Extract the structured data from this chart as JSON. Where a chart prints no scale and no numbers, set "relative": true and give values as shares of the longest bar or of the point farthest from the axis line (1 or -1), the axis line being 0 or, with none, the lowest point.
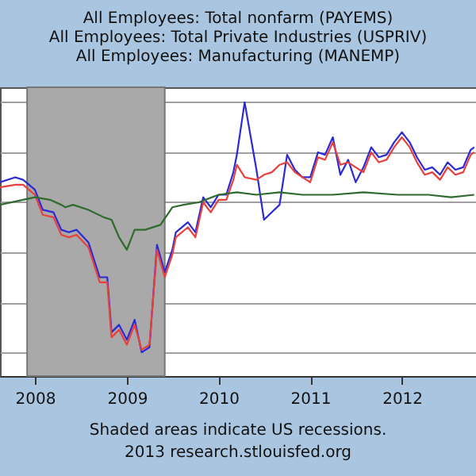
{
  "chart_data": {
    "type": "line",
    "relative": true,
    "title": [
      "All Employees: Total nonfarm (PAYEMS)",
      "All Employees: Total Private Industries (USPRIV)",
      "All Employees: Manufacturing (MANEMP)"
    ],
    "annotations": [
      "Shaded areas indicate US recessions.",
      "2013 research.stlouisfed.org"
    ],
    "x": [
      "2007-08-15",
      "2007-10-15",
      "2007-11-15",
      "2008-01-01",
      "2008-02-01",
      "2008-03-15",
      "2008-04-15",
      "2008-05-15",
      "2008-06-15",
      "2008-08-01",
      "2008-09-15",
      "2008-10-15",
      "2008-11-01",
      "2008-12-01",
      "2009-01-01",
      "2009-02-01",
      "2009-03-01",
      "2009-04-01",
      "2009-05-01",
      "2009-06-01",
      "2009-07-01",
      "2009-07-15",
      "2009-09-01",
      "2009-10-01",
      "2009-11-01",
      "2009-12-01",
      "2010-01-01",
      "2010-02-01",
      "2010-03-01",
      "2010-03-15",
      "2010-04-15",
      "2010-06-01",
      "2010-07-01",
      "2010-08-01",
      "2010-09-01",
      "2010-10-01",
      "2010-11-01",
      "2010-12-01",
      "2011-01-01",
      "2011-02-01",
      "2011-03-01",
      "2011-04-01",
      "2011-05-01",
      "2011-06-01",
      "2011-07-01",
      "2011-08-01",
      "2011-09-01",
      "2011-10-01",
      "2011-11-01",
      "2011-12-01",
      "2012-01-01",
      "2012-02-01",
      "2012-03-01",
      "2012-04-01",
      "2012-05-01",
      "2012-06-01",
      "2012-07-01",
      "2012-08-01",
      "2012-09-01",
      "2012-10-01",
      "2012-10-15"
    ],
    "xlim": [
      "2007-08-15",
      "2012-10-22"
    ],
    "xticks": [
      {
        "value": "2008",
        "label": "2008"
      },
      {
        "value": "2009",
        "label": "2009"
      },
      {
        "value": "2010",
        "label": "2010"
      },
      {
        "value": "2011",
        "label": "2011"
      },
      {
        "value": "2012",
        "label": "2012"
      }
    ],
    "series": [
      {
        "color": "#2a2ad8",
        "values": [
          0.68,
          0.7,
          0.69,
          0.65,
          0.57,
          0.56,
          0.49,
          0.48,
          0.49,
          0.44,
          0.3,
          0.3,
          0.08,
          0.11,
          0.05,
          0.13,
          0.0,
          0.02,
          0.43,
          0.32,
          0.41,
          0.48,
          0.52,
          0.48,
          0.62,
          0.58,
          0.63,
          0.63,
          0.72,
          0.79,
          1.0,
          0.73,
          0.53,
          0.56,
          0.59,
          0.79,
          0.73,
          0.7,
          0.7,
          0.8,
          0.79,
          0.86,
          0.71,
          0.77,
          0.68,
          0.74,
          0.82,
          0.78,
          0.79,
          0.84,
          0.88,
          0.84,
          0.78,
          0.73,
          0.74,
          0.71,
          0.76,
          0.73,
          0.74,
          0.81,
          0.82
        ]
      },
      {
        "color": "#e8403a",
        "values": [
          0.66,
          0.67,
          0.67,
          0.63,
          0.55,
          0.54,
          0.47,
          0.46,
          0.47,
          0.42,
          0.28,
          0.28,
          0.06,
          0.09,
          0.03,
          0.11,
          0.01,
          0.03,
          0.41,
          0.3,
          0.39,
          0.46,
          0.5,
          0.46,
          0.6,
          0.56,
          0.61,
          0.61,
          0.69,
          0.75,
          0.7,
          0.69,
          0.71,
          0.72,
          0.75,
          0.76,
          0.72,
          0.7,
          0.68,
          0.78,
          0.77,
          0.84,
          0.75,
          0.76,
          0.74,
          0.72,
          0.8,
          0.76,
          0.77,
          0.82,
          0.86,
          0.82,
          0.76,
          0.71,
          0.72,
          0.69,
          0.74,
          0.71,
          0.72,
          0.79,
          0.8
        ]
      },
      {
        "color": "#2f6a2f",
        "x": [
          "2007-08-15",
          "2008-01-01",
          "2008-03-01",
          "2008-04-15",
          "2008-05-01",
          "2008-06-01",
          "2008-08-01",
          "2008-10-01",
          "2008-11-01",
          "2008-12-01",
          "2009-01-01",
          "2009-02-01",
          "2009-03-15",
          "2009-05-15",
          "2009-07-01",
          "2009-08-15",
          "2009-10-15",
          "2010-01-01",
          "2010-03-15",
          "2010-06-01",
          "2010-09-01",
          "2010-12-01",
          "2011-04-01",
          "2011-08-01",
          "2011-12-15",
          "2012-04-15",
          "2012-07-15",
          "2012-10-15"
        ],
        "values": [
          0.59,
          0.62,
          0.61,
          0.59,
          0.58,
          0.59,
          0.57,
          0.54,
          0.53,
          0.46,
          0.41,
          0.49,
          0.49,
          0.51,
          0.58,
          0.59,
          0.6,
          0.63,
          0.64,
          0.63,
          0.64,
          0.63,
          0.63,
          0.64,
          0.63,
          0.63,
          0.62,
          0.63
        ]
      }
    ],
    "bands": [
      {
        "axis": "x",
        "from": "2007-12-01",
        "to": "2009-06-01",
        "color": "#a9a9a9"
      }
    ],
    "grid": "y"
  }
}
